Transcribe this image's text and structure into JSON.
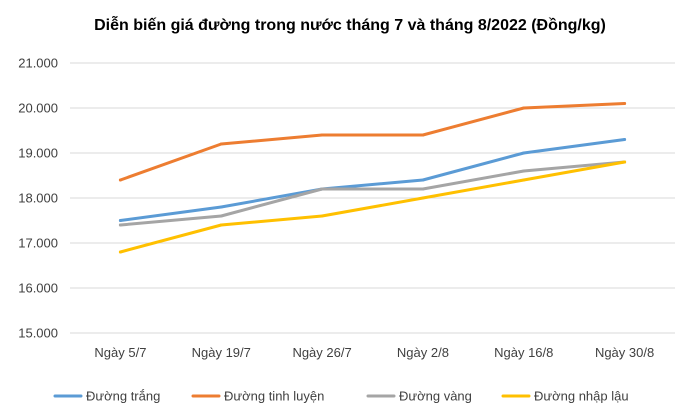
{
  "chart_data": {
    "type": "line",
    "title": "Diễn biến giá đường trong nước tháng 7 và tháng 8/2022 (Đồng/kg)",
    "xlabel": "",
    "ylabel": "",
    "categories": [
      "Ngày 5/7",
      "Ngày 19/7",
      "Ngày 26/7",
      "Ngày 2/8",
      "Ngày 16/8",
      "Ngày 30/8"
    ],
    "ylim": [
      15000,
      21000
    ],
    "yticks": [
      15000,
      16000,
      17000,
      18000,
      19000,
      20000,
      21000
    ],
    "ytick_labels": [
      "15.000",
      "16.000",
      "17.000",
      "18.000",
      "19.000",
      "20.000",
      "21.000"
    ],
    "grid": true,
    "legend_position": "bottom",
    "series": [
      {
        "name": "Đường trắng",
        "color": "#5b9bd5",
        "values": [
          17500,
          17800,
          18200,
          18400,
          19000,
          19300
        ]
      },
      {
        "name": "Đường tinh luyện",
        "color": "#ed7d31",
        "values": [
          18400,
          19200,
          19400,
          19400,
          20000,
          20100
        ]
      },
      {
        "name": "Đường vàng",
        "color": "#a5a5a5",
        "values": [
          17400,
          17600,
          18200,
          18200,
          18600,
          18800
        ]
      },
      {
        "name": "Đường nhập lậu",
        "color": "#ffc000",
        "values": [
          16800,
          17400,
          17600,
          18000,
          18400,
          18800
        ]
      }
    ]
  }
}
